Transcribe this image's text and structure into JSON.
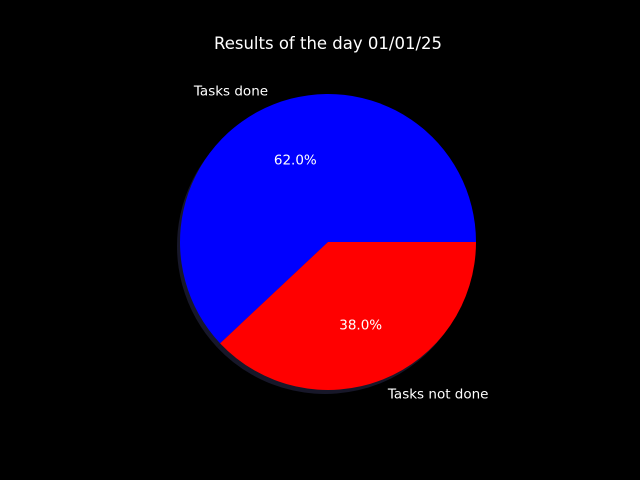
{
  "chart_data": {
    "type": "pie",
    "title": "Results of the day 01/01/25",
    "labels": [
      "Tasks done",
      "Tasks not done"
    ],
    "values": [
      62.0,
      38.0
    ],
    "percent_labels": [
      "62.0%",
      "38.0%"
    ],
    "colors": [
      "#0000ff",
      "#ff0000"
    ],
    "background": "#000000",
    "shadow": true,
    "start_angle_deg": 0,
    "direction": "counterclockwise"
  }
}
